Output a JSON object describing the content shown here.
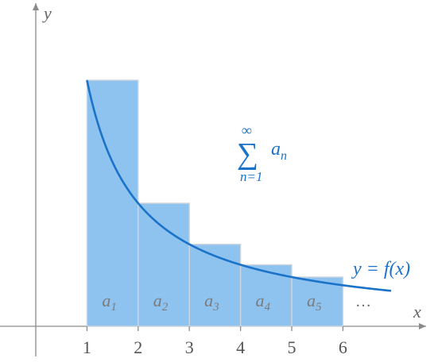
{
  "axes": {
    "x_label": "x",
    "y_label": "y",
    "x_ticks": [
      "1",
      "2",
      "3",
      "4",
      "5",
      "6"
    ]
  },
  "rectangles": [
    {
      "label": "a",
      "sub": "1",
      "height": 1.0
    },
    {
      "label": "a",
      "sub": "2",
      "height": 0.5
    },
    {
      "label": "a",
      "sub": "3",
      "height": 0.3333
    },
    {
      "label": "a",
      "sub": "4",
      "height": 0.25
    },
    {
      "label": "a",
      "sub": "5",
      "height": 0.2
    }
  ],
  "ellipsis": "…",
  "sum_label": {
    "symbol": "∑",
    "upper": "∞",
    "lower": "n=1",
    "term": "a",
    "term_sub": "n"
  },
  "curve_label": "y = f(x)",
  "colors": {
    "bar_fill": "#8ec3f0",
    "curve": "#1a73c9",
    "label": "#1a73c9"
  }
}
